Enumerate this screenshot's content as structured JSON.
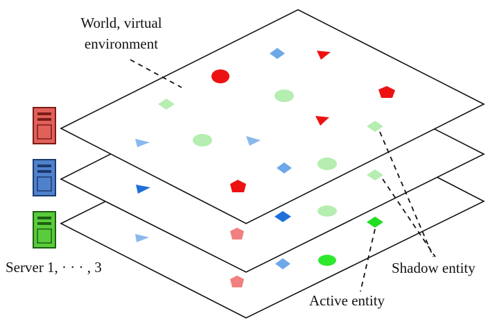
{
  "world_label": {
    "lines": [
      "World, virtual",
      "environment"
    ]
  },
  "server_label": "Server 1, · · · , 3",
  "shadow_label": "Shadow entity",
  "active_label": "Active entity"
}
